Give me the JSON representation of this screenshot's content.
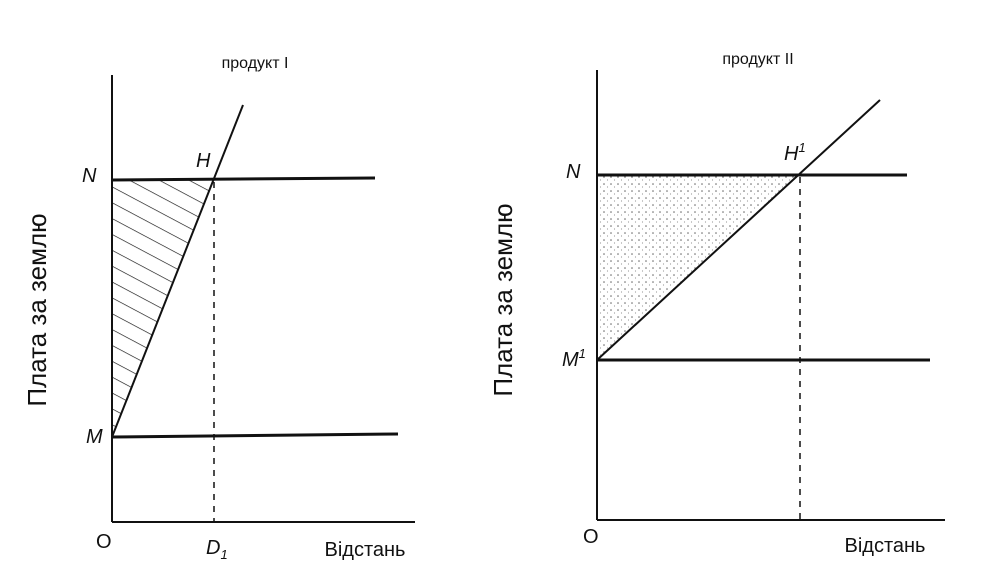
{
  "panels": [
    {
      "title": "продукт I",
      "y_label": "Плата за землю",
      "x_label": "Відстань",
      "points": {
        "N": "N",
        "H": "H",
        "M": "M",
        "O": "O",
        "D": {
          "base": "D",
          "sub": "1"
        }
      }
    },
    {
      "title": "продукт II",
      "y_label": "Плата за землю",
      "x_label": "Відстань",
      "points": {
        "N": "N",
        "H": {
          "base": "H",
          "sup": "1"
        },
        "M": {
          "base": "M",
          "sup": "1"
        },
        "O": "O"
      }
    }
  ]
}
